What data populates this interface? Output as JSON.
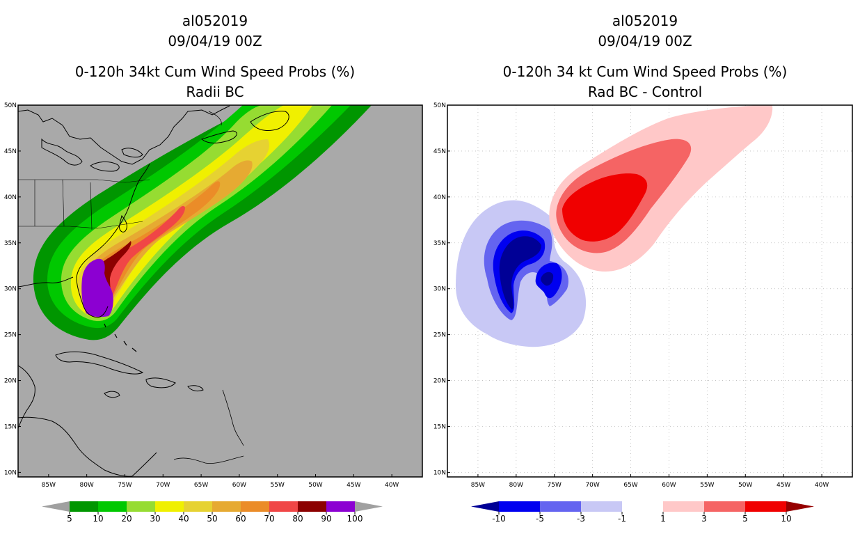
{
  "left": {
    "storm": "al052019",
    "date": "09/04/19 00Z",
    "title": "0-120h 34kt Cum Wind Speed Probs (%)",
    "subtitle": "Radii BC",
    "colorbar": {
      "labels": [
        "5",
        "10",
        "20",
        "30",
        "40",
        "50",
        "60",
        "70",
        "80",
        "90",
        "100"
      ],
      "colors": [
        "#a0a0a0",
        "#009600",
        "#00c800",
        "#96dc32",
        "#f0f000",
        "#e6d232",
        "#e6aa32",
        "#eb8c28",
        "#f04646",
        "#8c0000",
        "#8c00d2",
        "#a0a0a0"
      ]
    }
  },
  "right": {
    "storm": "al052019",
    "date": "09/04/19 00Z",
    "title": "0-120h 34 kt Cum Wind Speed Probs (%)",
    "subtitle": "Rad BC - Control",
    "colorbar": {
      "labels": [
        "-10",
        "-5",
        "-3",
        "-1",
        "1",
        "3",
        "5",
        "10"
      ],
      "colors": [
        "#000096",
        "#0000f0",
        "#6464f0",
        "#c8c8f5",
        "#ffffff",
        "#ffc8c8",
        "#f56464",
        "#f00000",
        "#960000"
      ]
    }
  },
  "axes": {
    "lat_labels": [
      "50N",
      "45N",
      "40N",
      "35N",
      "30N",
      "25N",
      "20N",
      "15N",
      "10N"
    ],
    "lon_labels": [
      "85W",
      "80W",
      "75W",
      "70W",
      "65W",
      "60W",
      "55W",
      "50W",
      "45W",
      "40W"
    ],
    "lat_values": [
      50,
      45,
      40,
      35,
      30,
      25,
      20,
      15,
      10
    ],
    "lon_values": [
      -85,
      -80,
      -75,
      -70,
      -65,
      -60,
      -55,
      -50,
      -45,
      -40
    ],
    "lon_range": [
      -89,
      -36
    ],
    "lat_range": [
      9.5,
      50
    ]
  },
  "colors": {
    "ocean_left": "#a9a9a9",
    "ocean_right": "#ffffff",
    "coast": "#000000",
    "grid": "#bbbbbb"
  }
}
